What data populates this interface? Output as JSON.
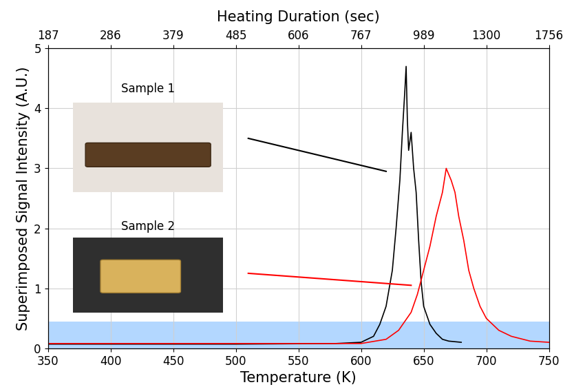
{
  "chart_data": {
    "type": "line",
    "x_label": "Temperature (K)",
    "y_label": "Superimposed Signal Intensity (A.U.)",
    "x2_label": "Heating Duration (sec)",
    "xlim": [
      350,
      750
    ],
    "xticks": [
      350,
      400,
      450,
      500,
      550,
      600,
      650,
      700,
      750
    ],
    "x2lim": [
      350,
      750
    ],
    "x2ticks": [
      {
        "value": 350,
        "label": "187"
      },
      {
        "value": 400,
        "label": "286"
      },
      {
        "value": 450,
        "label": "379"
      },
      {
        "value": 500,
        "label": "485"
      },
      {
        "value": 550,
        "label": "606"
      },
      {
        "value": 600,
        "label": "767"
      },
      {
        "value": 650,
        "label": "989"
      },
      {
        "value": 700,
        "label": "1300"
      },
      {
        "value": 750,
        "label": "1756"
      }
    ],
    "ylim": [
      0,
      5
    ],
    "yticks": [
      0,
      1,
      2,
      3,
      4,
      5
    ],
    "grid": true,
    "band": {
      "ymin": 0,
      "ymax": 0.45,
      "color": "#b3d7ff"
    },
    "annotations": [
      "Sample 1",
      "Sample 2"
    ],
    "series": [
      {
        "name": "Sample 1",
        "color": "#000000",
        "x": [
          350,
          400,
          500,
          580,
          600,
          610,
          615,
          620,
          625,
          628,
          631,
          633,
          635,
          636,
          637,
          638,
          640,
          642,
          644,
          646,
          648,
          650,
          655,
          660,
          665,
          670,
          680
        ],
        "values": [
          0.07,
          0.07,
          0.07,
          0.08,
          0.1,
          0.2,
          0.4,
          0.7,
          1.3,
          2.0,
          2.8,
          3.6,
          4.3,
          4.7,
          3.8,
          3.3,
          3.6,
          3.0,
          2.6,
          1.8,
          1.1,
          0.7,
          0.4,
          0.25,
          0.15,
          0.12,
          0.1
        ]
      },
      {
        "name": "Sample 2",
        "color": "#ff0000",
        "x": [
          350,
          400,
          500,
          600,
          620,
          630,
          640,
          645,
          650,
          655,
          660,
          665,
          668,
          672,
          675,
          678,
          682,
          686,
          690,
          695,
          700,
          710,
          720,
          735,
          750
        ],
        "values": [
          0.08,
          0.08,
          0.08,
          0.08,
          0.15,
          0.3,
          0.6,
          0.9,
          1.3,
          1.7,
          2.2,
          2.6,
          3.0,
          2.8,
          2.6,
          2.2,
          1.8,
          1.3,
          1.0,
          0.7,
          0.5,
          0.3,
          0.2,
          0.12,
          0.1
        ]
      }
    ]
  }
}
